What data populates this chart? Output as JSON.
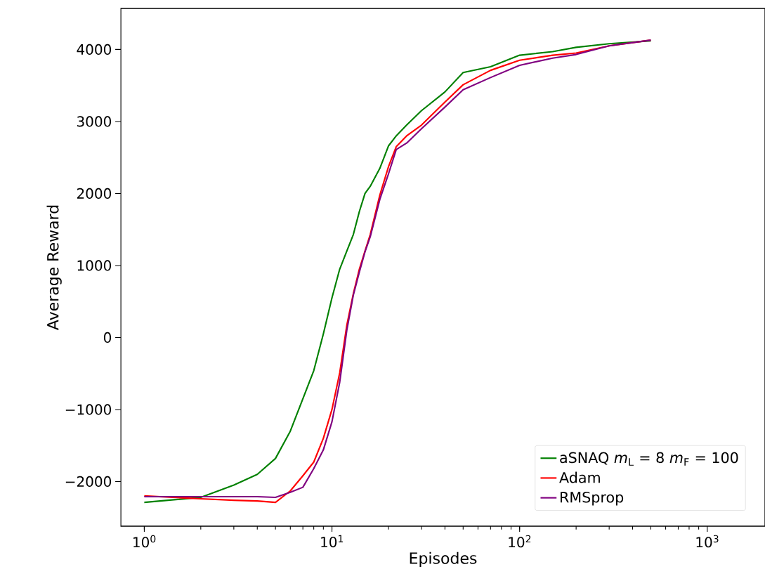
{
  "chart_data": {
    "type": "line",
    "xlabel": "Episodes",
    "ylabel": "Average Reward",
    "log": "x",
    "legend": "bottom right",
    "grid": false,
    "xlim": [
      0.75,
      2030
    ],
    "ylim": [
      -2620,
      4570
    ],
    "xticks": [
      {
        "value": 1,
        "label": "10$^{0}$"
      },
      {
        "value": 10,
        "label": "10$^{1}$"
      },
      {
        "value": 100,
        "label": "10$^{2}$"
      },
      {
        "value": 1000,
        "label": "10$^{3}$"
      }
    ],
    "yticks": [
      {
        "value": -2000,
        "label": "−2000"
      },
      {
        "value": -1000,
        "label": "−1000"
      },
      0,
      1000,
      2000,
      3000,
      4000
    ],
    "x": [
      1,
      2,
      3,
      4,
      5,
      6,
      7,
      8,
      9,
      10,
      11,
      12,
      13,
      14,
      15,
      16,
      18,
      20,
      22,
      25,
      30,
      40,
      50,
      70,
      100,
      150,
      200,
      300,
      500
    ],
    "series": [
      {
        "name": "aSNAQ *m*$_{L}$ = 8 *m*$_{F}$ = 100",
        "color": "#008000",
        "values": [
          -2290,
          -2220,
          -2050,
          -1900,
          -1680,
          -1300,
          -850,
          -460,
          50,
          550,
          950,
          1200,
          1430,
          1750,
          2000,
          2100,
          2350,
          2660,
          2800,
          2950,
          3150,
          3410,
          3680,
          3760,
          3920,
          3970,
          4030,
          4080,
          4120
        ]
      },
      {
        "name": "Adam",
        "color": "#ff0000",
        "values": [
          -2200,
          -2240,
          -2260,
          -2270,
          -2290,
          -2130,
          -1920,
          -1730,
          -1400,
          -1000,
          -490,
          170,
          610,
          950,
          1200,
          1430,
          1980,
          2370,
          2650,
          2800,
          2950,
          3270,
          3510,
          3710,
          3850,
          3920,
          3950,
          4050,
          4130
        ]
      },
      {
        "name": "RMSprop",
        "color": "#800080",
        "values": [
          -2210,
          -2210,
          -2210,
          -2210,
          -2220,
          -2150,
          -2080,
          -1820,
          -1560,
          -1170,
          -620,
          100,
          590,
          910,
          1190,
          1400,
          1920,
          2270,
          2610,
          2700,
          2900,
          3200,
          3440,
          3610,
          3780,
          3880,
          3930,
          4050,
          4130
        ]
      }
    ]
  }
}
